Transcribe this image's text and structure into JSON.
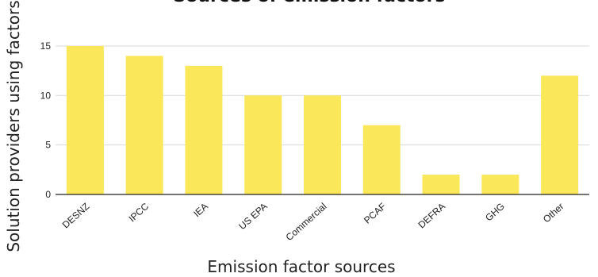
{
  "chart_data": {
    "type": "bar",
    "title": "Sources of emission factors",
    "xlabel": "Emission factor sources",
    "ylabel": "Solution providers using factors",
    "categories": [
      "DESNZ",
      "IPCC",
      "IEA",
      "US EPA",
      "Commercial",
      "PCAF",
      "DEFRA",
      "GHG",
      "Other"
    ],
    "values": [
      15,
      14,
      13,
      10,
      10,
      7,
      2,
      2,
      12
    ],
    "ylim": [
      0,
      16
    ],
    "yticks": [
      0,
      5,
      10,
      15
    ],
    "grid": true,
    "legend": "none",
    "bar_color": "#FAE85A"
  }
}
